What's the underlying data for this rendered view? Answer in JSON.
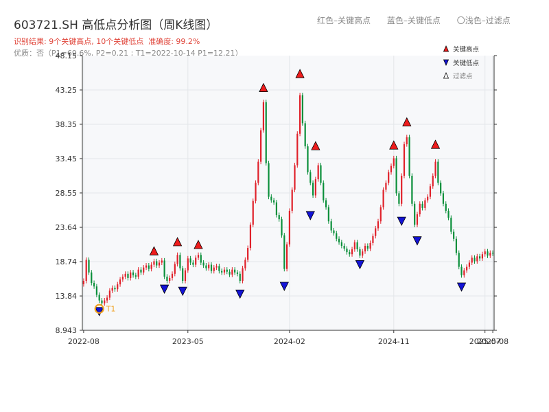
{
  "title": "603721.SH 高低点分析图（周K线图）",
  "result": {
    "prefix": "识别结果: ",
    "highs": "9个关键高点",
    "sep": ", ",
    "lows": "10个关键低点",
    "accuracy": "准确度: 99.2%"
  },
  "quality_text": "优质：否（P1=69.6%, P2=0.21 ; T1=2022-10-14 P1=12.21）",
  "top_legend": {
    "red": "红色–关键高点",
    "blue": "蓝色–关键低点",
    "light": "〇浅色–过滤点"
  },
  "inner_legend": [
    "关键高点",
    "关键低点",
    "过滤点"
  ],
  "t1_label": "T1",
  "colors": {
    "up": "#e0212a",
    "down": "#0a8f3a",
    "high_marker": "#ee1c1c",
    "low_marker": "#1313d6",
    "filtered": "#ffffff",
    "t1_ring": "#f0a020",
    "grid": "#e3e6ea",
    "plot_bg": "#f7f8fa"
  },
  "chart_data": {
    "type": "candlestick",
    "y_ticks": [
      "8.943",
      "13.84",
      "18.74",
      "23.64",
      "28.55",
      "33.45",
      "38.35",
      "43.25",
      "48.15"
    ],
    "ylim": [
      8.943,
      48.15
    ],
    "x_ticks": [
      {
        "label": "2022-08",
        "week": 0
      },
      {
        "label": "2023-05",
        "week": 40
      },
      {
        "label": "2024-02",
        "week": 79
      },
      {
        "label": "2024-11",
        "week": 119
      },
      {
        "label": "2025-07",
        "week": 154
      },
      {
        "label": "2025-08",
        "week": 157
      }
    ],
    "grid": true,
    "legend": "top-right",
    "key_highs": [
      {
        "week": 27,
        "price": 19.5
      },
      {
        "week": 36,
        "price": 20.8
      },
      {
        "week": 44,
        "price": 20.4
      },
      {
        "week": 69,
        "price": 42.8
      },
      {
        "week": 83,
        "price": 44.8
      },
      {
        "week": 89,
        "price": 34.5
      },
      {
        "week": 119,
        "price": 34.6
      },
      {
        "week": 124,
        "price": 37.9
      },
      {
        "week": 135,
        "price": 34.7
      }
    ],
    "key_lows": [
      {
        "week": 6,
        "price": 12.4
      },
      {
        "week": 31,
        "price": 15.6
      },
      {
        "week": 38,
        "price": 15.3
      },
      {
        "week": 60,
        "price": 14.9
      },
      {
        "week": 77,
        "price": 16.0
      },
      {
        "week": 87,
        "price": 26.1
      },
      {
        "week": 106,
        "price": 19.1
      },
      {
        "week": 122,
        "price": 25.3
      },
      {
        "week": 128,
        "price": 22.5
      },
      {
        "week": 145,
        "price": 15.9
      }
    ],
    "closes": [
      16.0,
      19.0,
      17.2,
      15.7,
      15.2,
      14.0,
      13.2,
      12.8,
      13.2,
      13.6,
      14.6,
      15.0,
      14.8,
      15.5,
      16.2,
      16.6,
      17.0,
      16.4,
      17.2,
      16.8,
      16.6,
      17.6,
      17.2,
      17.9,
      18.2,
      17.7,
      18.3,
      18.8,
      18.2,
      18.6,
      18.9,
      16.6,
      16.0,
      16.4,
      17.0,
      18.4,
      19.7,
      17.8,
      16.0,
      17.5,
      19.2,
      18.6,
      18.3,
      19.3,
      19.7,
      18.6,
      18.2,
      17.8,
      18.3,
      17.4,
      17.9,
      18.1,
      17.4,
      17.2,
      17.6,
      17.3,
      16.9,
      17.6,
      17.2,
      17.0,
      16.0,
      17.8,
      19.0,
      20.7,
      24.0,
      27.4,
      30.0,
      33.0,
      37.5,
      41.5,
      32.8,
      28.0,
      27.5,
      27.2,
      25.4,
      24.8,
      22.5,
      17.7,
      21.2,
      26.0,
      29.0,
      32.5,
      37.0,
      42.5,
      38.5,
      35.2,
      31.5,
      30.0,
      28.2,
      30.5,
      32.5,
      30.0,
      27.5,
      26.5,
      24.5,
      23.2,
      22.8,
      22.0,
      21.5,
      21.0,
      20.6,
      20.1,
      19.8,
      20.5,
      21.5,
      20.5,
      19.6,
      20.2,
      21.0,
      20.6,
      21.4,
      22.4,
      23.5,
      24.5,
      26.5,
      29.0,
      30.0,
      31.5,
      32.4,
      33.5,
      28.5,
      27.0,
      31.0,
      35.5,
      36.5,
      31.0,
      27.0,
      24.0,
      25.5,
      27.0,
      26.4,
      27.5,
      28.0,
      29.5,
      31.0,
      33.0,
      30.0,
      28.5,
      27.0,
      26.0,
      25.0,
      23.0,
      22.0,
      20.0,
      18.0,
      16.8,
      17.5,
      18.0,
      18.6,
      19.3,
      18.8,
      19.5,
      19.2,
      19.8,
      20.2,
      19.6,
      20.0,
      19.9
    ]
  }
}
